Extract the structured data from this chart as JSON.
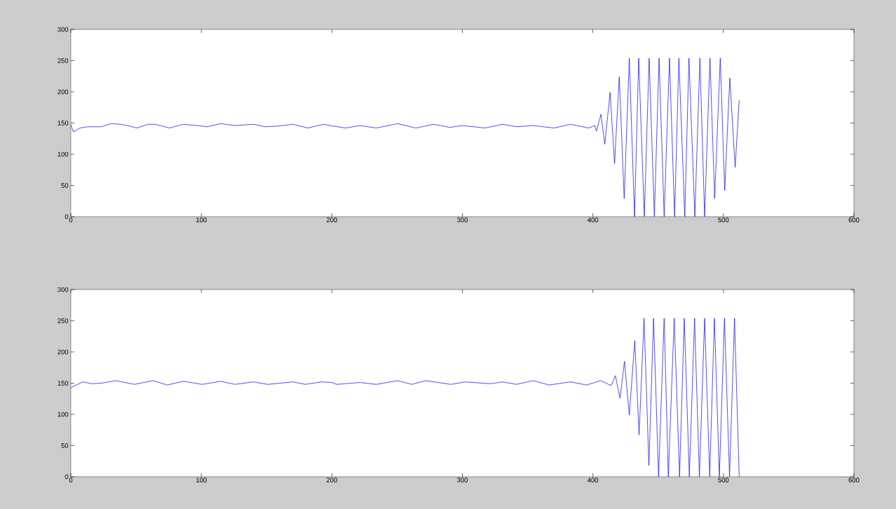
{
  "chart_data": [
    {
      "type": "line",
      "color": "#0000ff",
      "xlim": [
        0,
        600
      ],
      "ylim": [
        0,
        300
      ],
      "xticks": [
        0,
        100,
        200,
        300,
        400,
        500,
        600
      ],
      "yticks": [
        0,
        50,
        100,
        150,
        200,
        250,
        300
      ],
      "x": [
        0,
        2,
        7,
        12.9,
        23.6,
        30.8,
        38,
        43.3,
        50.5,
        59.4,
        64.8,
        75.5,
        86.3,
        97,
        104.2,
        115,
        125.7,
        140,
        149,
        158,
        170.5,
        181.3,
        193.8,
        198.2,
        210.7,
        221.5,
        234,
        250.4,
        264.4,
        277.9,
        290.4,
        300,
        317.3,
        330.7,
        341.6,
        354.1,
        370.2,
        382.7,
        397,
        401.5,
        402.7,
        406.2,
        409.1,
        413.2,
        416.6,
        420.2,
        424,
        427.9,
        431.9,
        435.1,
        439.4,
        443.1,
        447.1,
        450.7,
        454.6,
        458.7,
        462.6,
        465.9,
        470.4,
        473.6,
        478.1,
        482,
        485.6,
        489.7,
        493.3,
        497.6,
        501,
        504.9,
        509,
        512.1
      ],
      "values": [
        147,
        136,
        142,
        144,
        144,
        149,
        148,
        146,
        142,
        148,
        148,
        142,
        148,
        146,
        144,
        149,
        146,
        148,
        144,
        145,
        148,
        142,
        148,
        146,
        142,
        146,
        142,
        149,
        142,
        148,
        143,
        146,
        142,
        148,
        144,
        146,
        142,
        148,
        142,
        146,
        137,
        164,
        116,
        199,
        85,
        224,
        29,
        254,
        0,
        254,
        0,
        254,
        0,
        254,
        0,
        254,
        0,
        254,
        0,
        254,
        0,
        254,
        0,
        254,
        29,
        254,
        42,
        222,
        79,
        187
      ]
    },
    {
      "type": "line",
      "color": "#0000ff",
      "xlim": [
        0,
        600
      ],
      "ylim": [
        0,
        300
      ],
      "xticks": [
        0,
        100,
        200,
        300,
        400,
        500,
        600
      ],
      "yticks": [
        0,
        50,
        100,
        150,
        200,
        250,
        300
      ],
      "x": [
        0,
        1,
        9.2,
        16.4,
        23.6,
        34.4,
        48.7,
        63,
        73.8,
        86.3,
        100.6,
        115,
        125.7,
        140,
        150.8,
        170.5,
        179.5,
        192,
        200,
        203.6,
        221.5,
        234,
        250.4,
        261.2,
        271.9,
        291.3,
        302.1,
        321.6,
        330.7,
        341.6,
        354.1,
        366.5,
        382.7,
        395.1,
        405.9,
        414,
        417.2,
        420.8,
        424.2,
        427.9,
        432.1,
        435.4,
        439.2,
        442.9,
        446.5,
        450.3,
        454.6,
        457.8,
        462.3,
        466.4,
        470,
        473.9,
        477.9,
        481.6,
        485.6,
        489.5,
        493.1,
        496.9,
        500.8,
        504.7,
        508.5,
        512.1
      ],
      "values": [
        142,
        144,
        152,
        149,
        150,
        154,
        148,
        154,
        147,
        153,
        148,
        153,
        148,
        152,
        148,
        152,
        148,
        152,
        151,
        148,
        151,
        148,
        154,
        148,
        154,
        148,
        152,
        149,
        152,
        148,
        154,
        147,
        152,
        147,
        154,
        146,
        162,
        126,
        185,
        99,
        218,
        67,
        254,
        18,
        254,
        0,
        254,
        0,
        254,
        0,
        254,
        0,
        254,
        0,
        254,
        0,
        254,
        0,
        254,
        0,
        254,
        0
      ]
    }
  ]
}
